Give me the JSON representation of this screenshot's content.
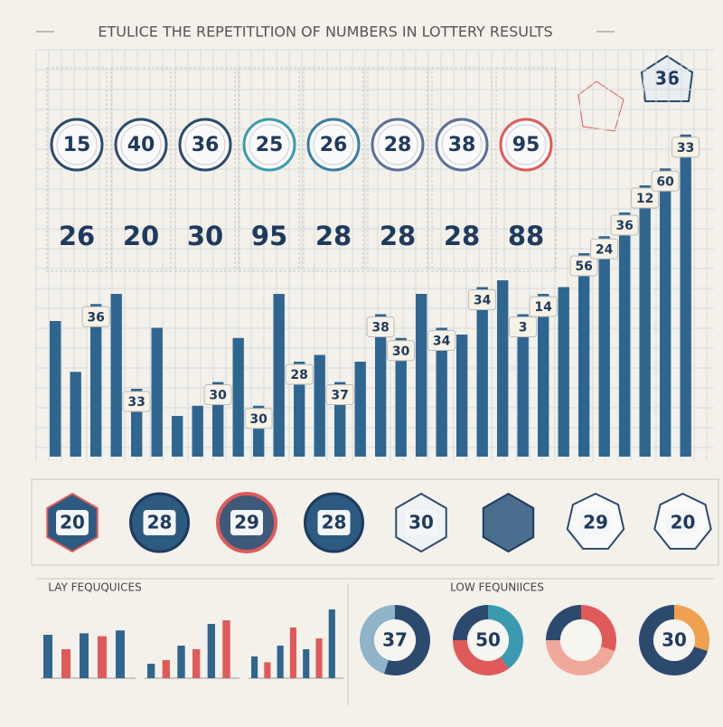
{
  "header": {
    "title": "ETULICE THE REPETITLTION OF NUMBERS IN LOTTERY RESULTS",
    "badge": "36"
  },
  "columns": {
    "balls": [
      "15",
      "40",
      "36",
      "25",
      "26",
      "28",
      "38",
      "95"
    ],
    "ring_colors": [
      "#2c4a6e",
      "#2c4a6e",
      "#2c4a6e",
      "#3a9bb0",
      "#3a7ca5",
      "#5a6f9a",
      "#5a6f9a",
      "#e05a5a"
    ],
    "numbers": [
      "26",
      "20",
      "30",
      "95",
      "28",
      "28",
      "28",
      "88"
    ]
  },
  "bars": {
    "ylim": [
      0,
      100
    ],
    "color": "#2f6690",
    "values": [
      40,
      25,
      45,
      48,
      20,
      38,
      12,
      15,
      22,
      35,
      15,
      48,
      28,
      30,
      22,
      28,
      42,
      35,
      48,
      38,
      36,
      50,
      52,
      42,
      48,
      50,
      60,
      65,
      72,
      80,
      85,
      95
    ],
    "tags": [
      {
        "bar": 4,
        "label": "33"
      },
      {
        "bar": 2,
        "label": "36"
      },
      {
        "bar": 8,
        "label": "30"
      },
      {
        "bar": 10,
        "label": "30"
      },
      {
        "bar": 12,
        "label": "28"
      },
      {
        "bar": 14,
        "label": "37"
      },
      {
        "bar": 16,
        "label": "38"
      },
      {
        "bar": 17,
        "label": "30"
      },
      {
        "bar": 19,
        "label": "34"
      },
      {
        "bar": 21,
        "label": "34"
      },
      {
        "bar": 23,
        "label": "3"
      },
      {
        "bar": 24,
        "label": "14"
      },
      {
        "bar": 26,
        "label": "56"
      },
      {
        "bar": 27,
        "label": "24"
      },
      {
        "bar": 28,
        "label": "36"
      },
      {
        "bar": 29,
        "label": "12"
      },
      {
        "bar": 30,
        "label": "60"
      },
      {
        "bar": 31,
        "label": "33"
      }
    ]
  },
  "badges": [
    {
      "shape": "hexagon",
      "label": "20"
    },
    {
      "shape": "circle",
      "label": "28"
    },
    {
      "shape": "ring",
      "label": "29"
    },
    {
      "shape": "circle",
      "label": "28"
    },
    {
      "shape": "ico",
      "label": "30"
    },
    {
      "shape": "die"
    },
    {
      "shape": "hepta",
      "label": "29"
    },
    {
      "shape": "hepta",
      "label": "20"
    }
  ],
  "high": {
    "title": "LAY FEQUQUICES",
    "groups": [
      [
        60,
        40,
        62,
        58,
        66
      ],
      [
        20,
        25,
        45,
        40,
        75,
        80
      ],
      [
        30,
        22,
        45,
        70,
        40,
        55,
        95
      ]
    ]
  },
  "low": {
    "title": "LOW FEQUNIICES",
    "donuts": [
      {
        "label": "37",
        "segments": [
          {
            "value": 55,
            "color": "#2c4a6e"
          },
          {
            "value": 45,
            "color": "#8fb3c9"
          }
        ]
      },
      {
        "label": "50",
        "segments": [
          {
            "value": 40,
            "color": "#3a9bb0"
          },
          {
            "value": 35,
            "color": "#e05a5a"
          },
          {
            "value": 25,
            "color": "#2c4a6e"
          }
        ]
      },
      {
        "segments": [
          {
            "value": 30,
            "color": "#e05a5a"
          },
          {
            "value": 45,
            "color": "#f0a89a"
          },
          {
            "value": 25,
            "color": "#2c4a6e"
          }
        ]
      },
      {
        "label": "30",
        "segments": [
          {
            "value": 30,
            "color": "#f0a050"
          },
          {
            "value": 70,
            "color": "#2c4a6e"
          }
        ]
      }
    ]
  }
}
